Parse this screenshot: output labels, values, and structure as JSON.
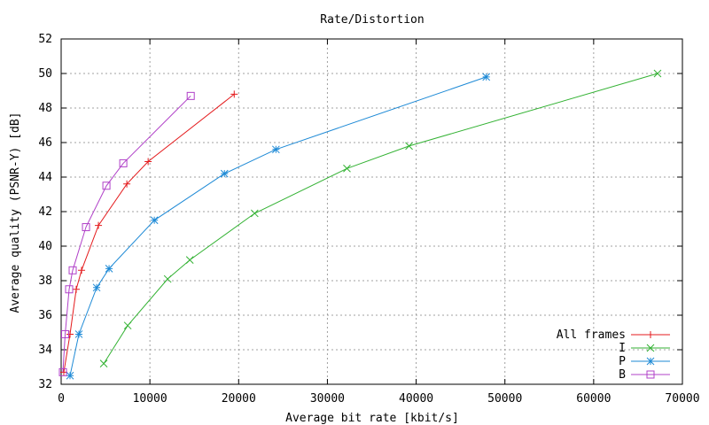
{
  "chart_data": {
    "type": "line",
    "title": "Rate/Distortion",
    "xlabel": "Average bit rate [kbit/s]",
    "ylabel": "Average quality (PSNR-Y) [dB]",
    "xlim": [
      0,
      70000
    ],
    "ylim": [
      32,
      52
    ],
    "xticks": [
      0,
      10000,
      20000,
      30000,
      40000,
      50000,
      60000,
      70000
    ],
    "yticks": [
      32,
      34,
      36,
      38,
      40,
      42,
      44,
      46,
      48,
      50,
      52
    ],
    "grid": true,
    "legend_position": "bottom-right",
    "series": [
      {
        "name": "All frames",
        "color": "#e41a1c",
        "marker": "plus",
        "x": [
          300,
          1000,
          1700,
          2300,
          4200,
          7400,
          9800,
          19500
        ],
        "y": [
          32.7,
          34.9,
          37.5,
          38.6,
          41.2,
          43.6,
          44.9,
          48.8
        ]
      },
      {
        "name": "I",
        "color": "#33b233",
        "marker": "cross",
        "x": [
          4800,
          7500,
          12000,
          14500,
          21800,
          32200,
          39200,
          67200
        ],
        "y": [
          33.2,
          35.4,
          38.1,
          39.2,
          41.9,
          44.5,
          45.8,
          50.0
        ]
      },
      {
        "name": "P",
        "color": "#1e8ad6",
        "marker": "star",
        "x": [
          1000,
          2000,
          4000,
          5400,
          10500,
          18400,
          24200,
          47900
        ],
        "y": [
          32.5,
          34.9,
          37.6,
          38.7,
          41.5,
          44.2,
          45.6,
          49.8
        ]
      },
      {
        "name": "B",
        "color": "#b040c8",
        "marker": "square",
        "x": [
          200,
          450,
          900,
          1300,
          2800,
          5100,
          7000,
          14600
        ],
        "y": [
          32.7,
          34.9,
          37.5,
          38.6,
          41.1,
          43.5,
          44.8,
          48.7
        ]
      }
    ]
  }
}
